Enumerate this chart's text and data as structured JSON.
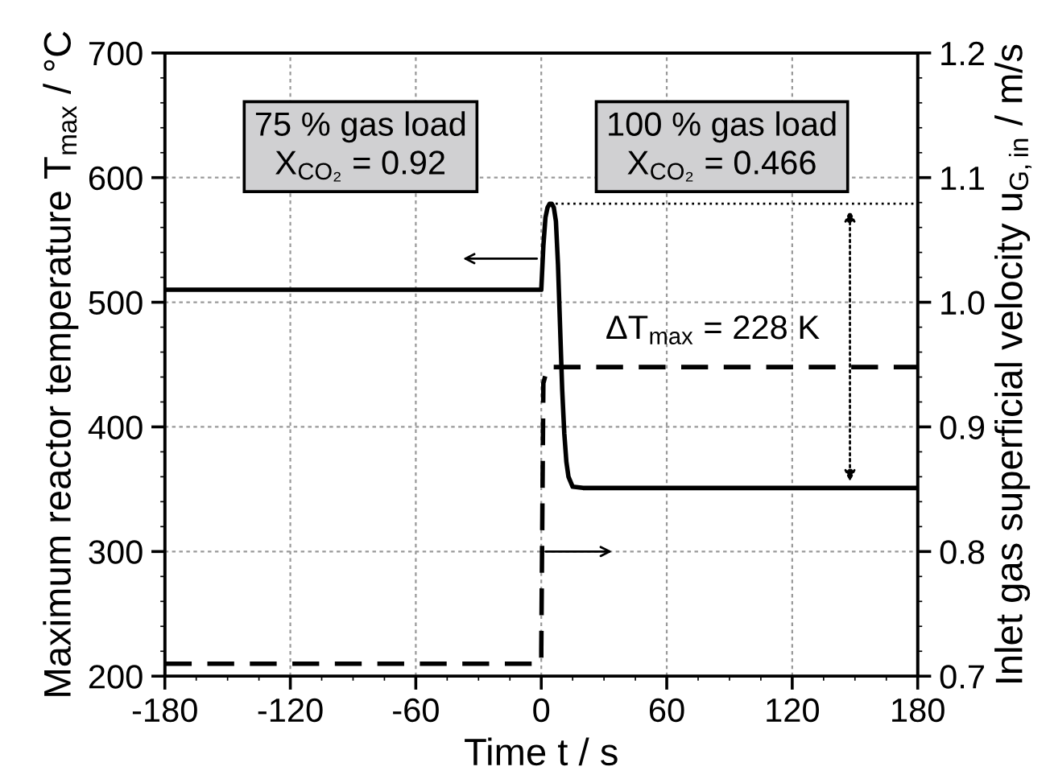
{
  "chart_data": {
    "type": "line",
    "xlabel": "Time t / s",
    "ylabel": "Maximum reactor temperature T$_{max}$ / °C",
    "y2label": "Inlet gas superficial velocity u$_{G,in}$ / m/s",
    "series": [
      {
        "color": "#000000",
        "line_style": "solid",
        "x": [
          -180,
          0,
          1,
          2,
          3,
          4,
          5,
          6,
          7,
          8,
          9,
          10,
          11,
          12,
          13,
          15,
          20,
          60,
          120,
          180
        ],
        "values": [
          510,
          510,
          545,
          568,
          576,
          579,
          579,
          576,
          565,
          530,
          480,
          430,
          395,
          372,
          360,
          352,
          351,
          351,
          351,
          351
        ]
      },
      {
        "color": "#000000",
        "line_style": "dashed",
        "axis": "y2",
        "x": [
          -180,
          0,
          0,
          1,
          3,
          180
        ],
        "values": [
          0.71,
          0.71,
          0.72,
          0.935,
          0.948,
          0.948
        ]
      }
    ],
    "xlim": [
      -180,
      180
    ],
    "xticks": [
      -180,
      -120,
      -60,
      0,
      60,
      120,
      180
    ],
    "ylim": [
      200,
      700
    ],
    "yticks": [
      200,
      300,
      400,
      500,
      600,
      700
    ],
    "y2lim": [
      0.7,
      1.2
    ],
    "y2ticks": [
      {
        "value": 0.7,
        "label": "0.7"
      },
      {
        "value": 0.8,
        "label": "0.8"
      },
      {
        "value": 0.9,
        "label": "0.9"
      },
      {
        "value": 1.0,
        "label": "1.0"
      },
      {
        "value": 1.1,
        "label": "1.1"
      },
      {
        "value": 1.2,
        "label": "1.2"
      }
    ],
    "grid": true,
    "legend": false,
    "marker": "none",
    "annotations": [
      "75 % gas load\nX$_{CO₂}$ = 0.92",
      "100 % gas load\nX$_{CO₂}$ = 0.466",
      "ΔT$_{max}$ = 228 K"
    ],
    "ref_lines": [
      {
        "axis": "y",
        "value": 579,
        "line_style": "dotted",
        "color": "#000000"
      }
    ]
  }
}
